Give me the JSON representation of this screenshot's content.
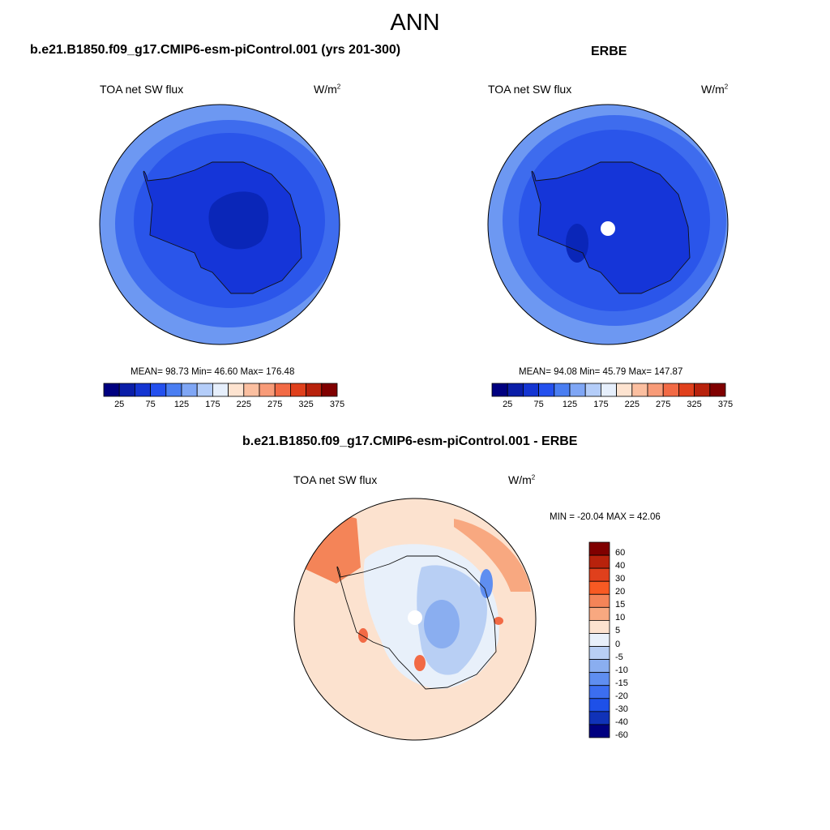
{
  "title": "ANN",
  "panels": {
    "model": {
      "header": "b.e21.B1850.f09_g17.CMIP6-esm-piControl.001 (yrs 201-300)",
      "variable": "TOA net SW flux",
      "units_base": "W/m",
      "units_exp": "2",
      "stats": "MEAN=  98.73  Min=  46.60  Max= 176.48"
    },
    "obs": {
      "header": "ERBE",
      "variable": "TOA net SW flux",
      "units_base": "W/m",
      "units_exp": "2",
      "stats": "MEAN=  94.08  Min=  45.79  Max= 147.87"
    },
    "diff": {
      "header": "b.e21.B1850.f09_g17.CMIP6-esm-piControl.001 - ERBE",
      "variable": "TOA net SW flux",
      "units_base": "W/m",
      "units_exp": "2",
      "stats": "MIN = -20.04 MAX =  42.06"
    }
  },
  "colorbar_abs": {
    "colors": [
      "#000080",
      "#0a1ea8",
      "#1435d2",
      "#2450ee",
      "#4a7ef2",
      "#7fa6f5",
      "#b4cdf9",
      "#e6effc",
      "#fde3d0",
      "#fbbfa0",
      "#f89b78",
      "#f26a45",
      "#e0401c",
      "#b8220c",
      "#800000"
    ],
    "tick_labels": [
      "25",
      "75",
      "125",
      "175",
      "225",
      "275",
      "325",
      "375"
    ]
  },
  "colorbar_diff": {
    "colors": [
      "#800000",
      "#b8220c",
      "#e0401c",
      "#f85a23",
      "#f48458",
      "#f8a880",
      "#fce2cf",
      "#e8f0fa",
      "#b8cff4",
      "#8aaef0",
      "#5f8ef0",
      "#3c6ef0",
      "#1e50e8",
      "#1032b8",
      "#000080"
    ],
    "tick_labels": [
      "60",
      "40",
      "30",
      "20",
      "15",
      "10",
      "5",
      "0",
      "-5",
      "-10",
      "-15",
      "-20",
      "-30",
      "-40",
      "-60"
    ]
  }
}
